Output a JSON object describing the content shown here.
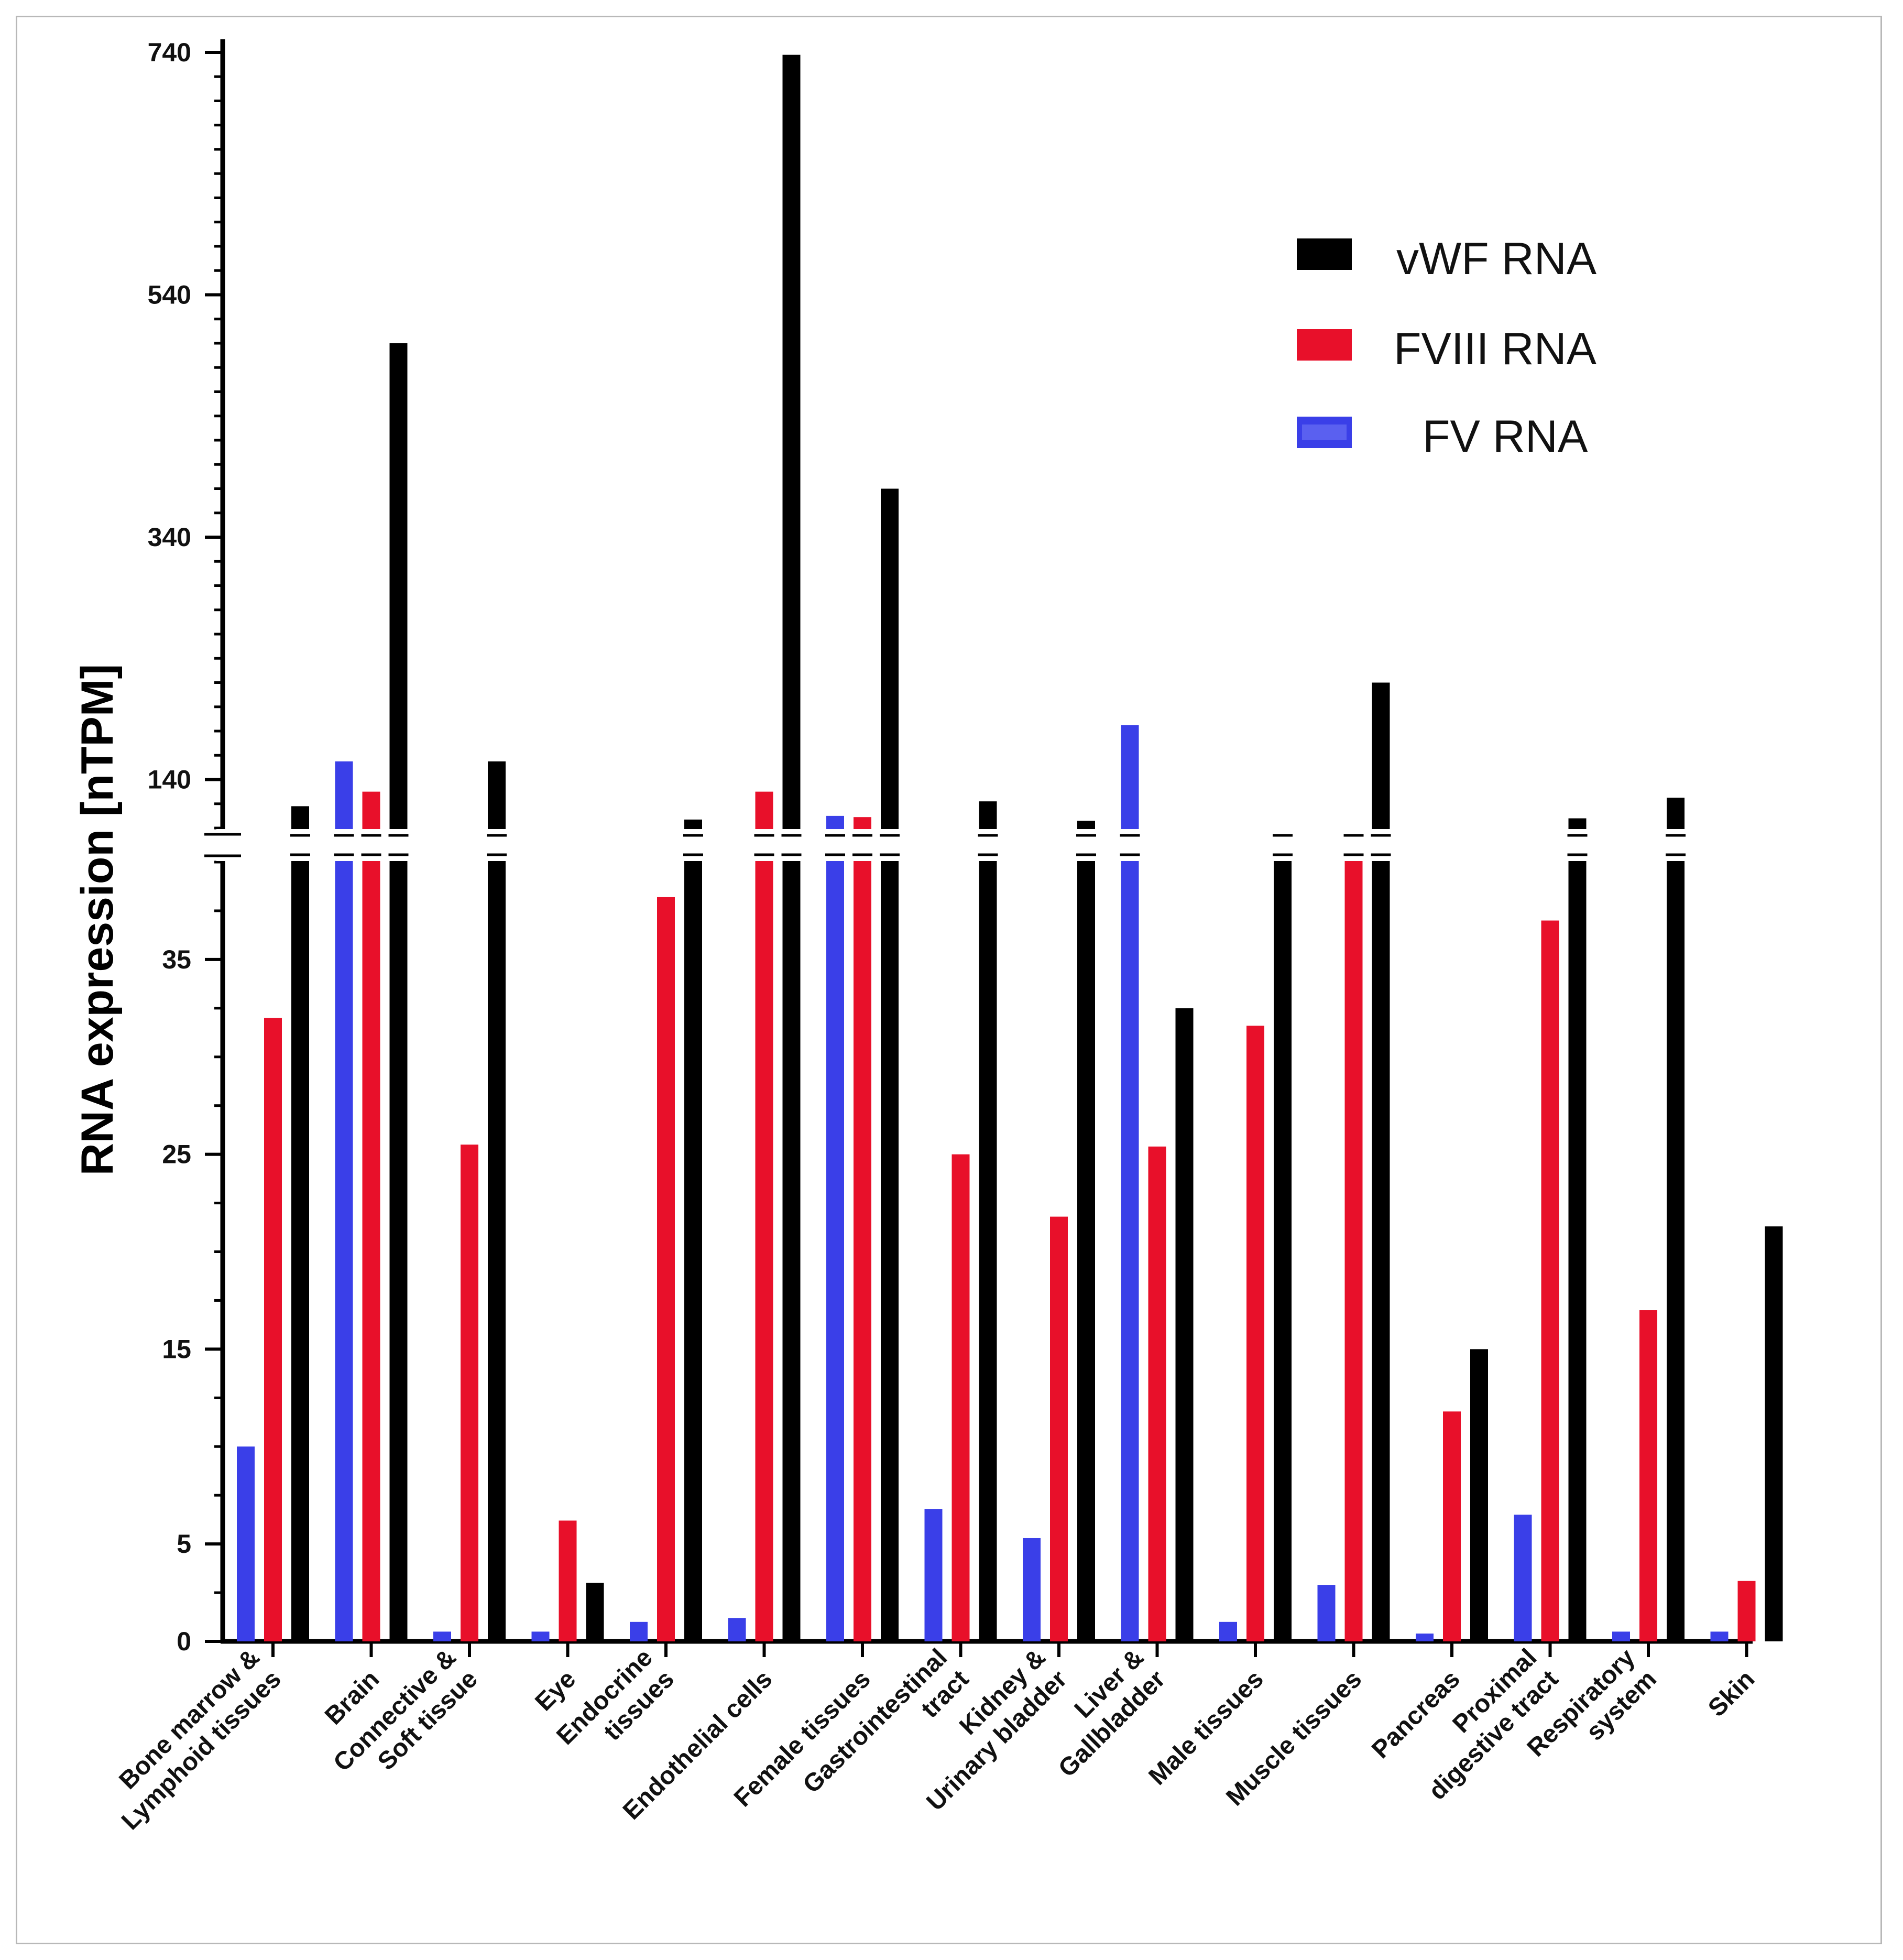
{
  "chart_data": {
    "type": "bar",
    "title": "",
    "xlabel": "",
    "ylabel": "RNA expression [nTPM]",
    "axis_break": {
      "lower_max": 40,
      "upper_min": 100,
      "upper_max": 740
    },
    "lower_ticks": [
      0,
      5,
      15,
      25,
      35
    ],
    "upper_ticks": [
      140,
      340,
      540,
      740
    ],
    "categories": [
      [
        "Bone marrow &",
        "Lymphoid tissues"
      ],
      [
        "Brain"
      ],
      [
        "Connective &",
        "Soft tissue"
      ],
      [
        "Eye"
      ],
      [
        "Endocrine",
        "tissues"
      ],
      [
        "Endothelial cells"
      ],
      [
        "Female tissues"
      ],
      [
        "Gastrointestinal",
        "tract"
      ],
      [
        "Kidney &",
        "Urinary bladder"
      ],
      [
        "Liver &",
        "Gallbladder"
      ],
      [
        "Male tissues"
      ],
      [
        "Muscle tissues"
      ],
      [
        "Pancreas"
      ],
      [
        "Proximal",
        "digestive tract"
      ],
      [
        "Respiratory",
        "system"
      ],
      [
        "Skin"
      ]
    ],
    "series": [
      {
        "name": "FV RNA",
        "color": "#3a3fe8",
        "values": [
          10,
          155,
          0.5,
          0.5,
          1,
          1.2,
          110,
          6.8,
          5.3,
          185,
          1,
          2.9,
          0.4,
          6.5,
          0.5,
          0.5
        ]
      },
      {
        "name": "FVIII RNA",
        "color": "#e8102a",
        "values": [
          32,
          130,
          25.5,
          6.2,
          38.2,
          130,
          109,
          25,
          21.8,
          25.4,
          31.6,
          91,
          11.8,
          37,
          17,
          3.1
        ]
      },
      {
        "name": "vWF RNA",
        "color": "#000000",
        "values": [
          118,
          500,
          155,
          3,
          107,
          738,
          380,
          122,
          106,
          32.5,
          93,
          220,
          15,
          108,
          125,
          21.3
        ]
      }
    ],
    "legend": {
      "position": "top-right",
      "order": [
        "vWF RNA",
        "FVIII RNA",
        "FV RNA"
      ]
    }
  }
}
